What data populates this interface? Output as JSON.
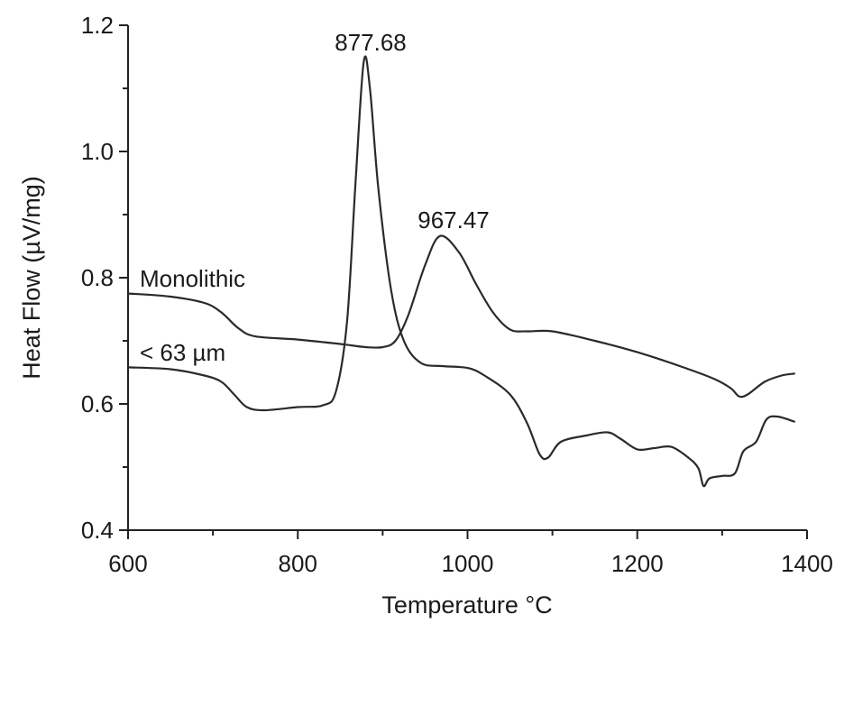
{
  "chart_data": {
    "type": "line",
    "xlabel": "Temperature °C",
    "ylabel": "Heat Flow (µV/mg)",
    "xlim": [
      600,
      1400
    ],
    "ylim": [
      0.4,
      1.2
    ],
    "x_ticks": [
      600,
      800,
      1000,
      1200,
      1400
    ],
    "y_ticks": [
      0.4,
      0.6,
      0.8,
      1.0,
      1.2
    ],
    "y_tick_labels": [
      "0.4",
      "0.6",
      "0.8",
      "1.0",
      "1.2"
    ],
    "grid": false,
    "series": [
      {
        "name": "Monolithic",
        "points": [
          [
            600,
            0.775
          ],
          [
            650,
            0.77
          ],
          [
            690,
            0.76
          ],
          [
            710,
            0.745
          ],
          [
            730,
            0.72
          ],
          [
            750,
            0.707
          ],
          [
            800,
            0.702
          ],
          [
            850,
            0.695
          ],
          [
            880,
            0.69
          ],
          [
            900,
            0.69
          ],
          [
            915,
            0.7
          ],
          [
            930,
            0.74
          ],
          [
            950,
            0.82
          ],
          [
            967.47,
            0.866
          ],
          [
            990,
            0.84
          ],
          [
            1010,
            0.79
          ],
          [
            1030,
            0.745
          ],
          [
            1050,
            0.718
          ],
          [
            1070,
            0.715
          ],
          [
            1100,
            0.715
          ],
          [
            1150,
            0.7
          ],
          [
            1200,
            0.682
          ],
          [
            1250,
            0.66
          ],
          [
            1290,
            0.64
          ],
          [
            1310,
            0.625
          ],
          [
            1320,
            0.612
          ],
          [
            1330,
            0.615
          ],
          [
            1350,
            0.635
          ],
          [
            1370,
            0.645
          ],
          [
            1385,
            0.648
          ]
        ]
      },
      {
        "name": "< 63 µm",
        "points": [
          [
            600,
            0.658
          ],
          [
            650,
            0.655
          ],
          [
            690,
            0.645
          ],
          [
            710,
            0.635
          ],
          [
            725,
            0.615
          ],
          [
            740,
            0.595
          ],
          [
            760,
            0.59
          ],
          [
            800,
            0.595
          ],
          [
            830,
            0.598
          ],
          [
            845,
            0.62
          ],
          [
            858,
            0.73
          ],
          [
            868,
            0.95
          ],
          [
            877.68,
            1.142
          ],
          [
            885,
            1.1
          ],
          [
            895,
            0.94
          ],
          [
            910,
            0.78
          ],
          [
            925,
            0.7
          ],
          [
            945,
            0.665
          ],
          [
            970,
            0.66
          ],
          [
            1000,
            0.657
          ],
          [
            1020,
            0.645
          ],
          [
            1050,
            0.615
          ],
          [
            1070,
            0.57
          ],
          [
            1085,
            0.52
          ],
          [
            1095,
            0.515
          ],
          [
            1110,
            0.54
          ],
          [
            1140,
            0.55
          ],
          [
            1165,
            0.555
          ],
          [
            1180,
            0.545
          ],
          [
            1200,
            0.528
          ],
          [
            1220,
            0.53
          ],
          [
            1240,
            0.532
          ],
          [
            1260,
            0.515
          ],
          [
            1272,
            0.498
          ],
          [
            1278,
            0.47
          ],
          [
            1285,
            0.482
          ],
          [
            1300,
            0.486
          ],
          [
            1315,
            0.49
          ],
          [
            1325,
            0.525
          ],
          [
            1340,
            0.54
          ],
          [
            1352,
            0.575
          ],
          [
            1365,
            0.58
          ],
          [
            1385,
            0.572
          ]
        ]
      }
    ],
    "annotations": [
      {
        "text": "877.68",
        "x": 877.68,
        "y": 1.142
      },
      {
        "text": "967.47",
        "x": 967.47,
        "y": 0.866
      }
    ],
    "series_labels": [
      {
        "text": "Monolithic",
        "series": 0
      },
      {
        "text": "< 63 µm",
        "series": 1
      }
    ]
  }
}
